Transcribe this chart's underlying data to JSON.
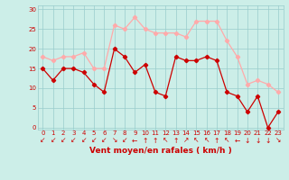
{
  "x": [
    0,
    1,
    2,
    3,
    4,
    5,
    6,
    7,
    8,
    9,
    10,
    11,
    12,
    13,
    14,
    15,
    16,
    17,
    18,
    19,
    20,
    21,
    22,
    23
  ],
  "avg": [
    15,
    12,
    15,
    15,
    14,
    11,
    9,
    20,
    18,
    14,
    16,
    9,
    8,
    18,
    17,
    17,
    18,
    17,
    9,
    8,
    4,
    8,
    0,
    4
  ],
  "gust": [
    18,
    17,
    18,
    18,
    19,
    15,
    15,
    26,
    25,
    28,
    25,
    24,
    24,
    24,
    23,
    27,
    27,
    27,
    22,
    18,
    11,
    12,
    11,
    9
  ],
  "avg_color": "#cc0000",
  "gust_color": "#ffaaaa",
  "bg_color": "#cceee8",
  "grid_color": "#99cccc",
  "xlabel": "Vent moyen/en rafales ( km/h )",
  "xlabel_color": "#cc0000",
  "yticks": [
    0,
    5,
    10,
    15,
    20,
    25,
    30
  ],
  "ylim": [
    -0.5,
    31
  ],
  "xlim": [
    -0.5,
    23.5
  ],
  "marker": "D",
  "markersize": 2.2,
  "linewidth": 0.9,
  "tick_color": "#cc0000",
  "tick_fontsize": 5.0,
  "xlabel_fontsize": 6.5,
  "arrow_symbols": [
    "↙",
    "↙",
    "↙",
    "↙",
    "↙",
    "↙",
    "↙",
    "↘",
    "↙",
    "←",
    "↑",
    "↑",
    "↖",
    "↑",
    "↗",
    "↖",
    "↖",
    "↑",
    "↖",
    "←",
    "↓",
    "↓",
    "↓",
    "↘"
  ]
}
